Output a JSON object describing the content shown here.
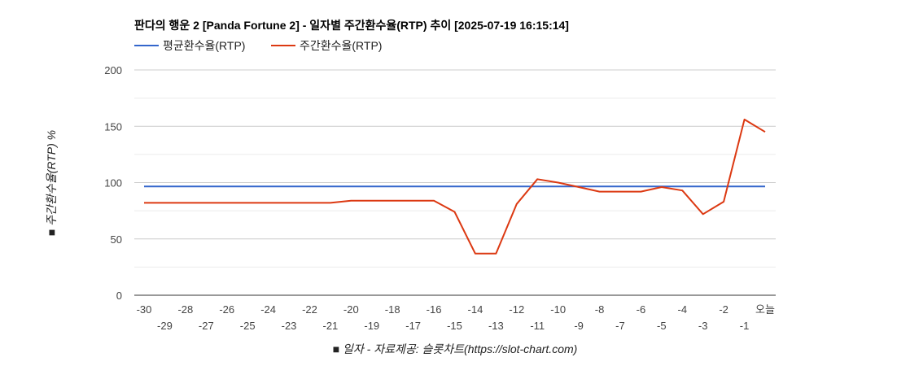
{
  "chart_data": {
    "type": "line",
    "title": "판다의 행운 2 [Panda Fortune 2] - 일자별 주간환수율(RTP) 추이 [2025-07-19 16:15:14]",
    "ylabel": "■ 주간환수율(RTP) %",
    "xlabel": "■ 일자 - 자료제공: 슬롯차트(https://slot-chart.com)",
    "ylim": [
      0,
      200
    ],
    "yticks": [
      "200",
      "150",
      "100",
      "50",
      "0"
    ],
    "x": [
      "-30",
      "-29",
      "-28",
      "-27",
      "-26",
      "-25",
      "-24",
      "-23",
      "-22",
      "-21",
      "-20",
      "-19",
      "-18",
      "-17",
      "-16",
      "-15",
      "-14",
      "-13",
      "-12",
      "-11",
      "-10",
      "-9",
      "-8",
      "-7",
      "-6",
      "-5",
      "-4",
      "-3",
      "-2",
      "-1",
      "오늘"
    ],
    "legend_position": "top-left",
    "grid": true,
    "series": [
      {
        "name": "평균환수율(RTP)",
        "color": "#3366cc",
        "values": [
          96.5,
          96.5,
          96.5,
          96.5,
          96.5,
          96.5,
          96.5,
          96.5,
          96.5,
          96.5,
          96.5,
          96.5,
          96.5,
          96.5,
          96.5,
          96.5,
          96.5,
          96.5,
          96.5,
          96.5,
          96.5,
          96.5,
          96.5,
          96.5,
          96.5,
          96.5,
          96.5,
          96.5,
          96.5,
          96.5,
          96.5
        ]
      },
      {
        "name": "주간환수율(RTP)",
        "color": "#dc3912",
        "values": [
          82,
          82,
          82,
          82,
          82,
          82,
          82,
          82,
          82,
          82,
          84,
          84,
          84,
          84,
          84,
          74,
          37,
          37,
          81,
          103,
          100,
          96,
          92,
          92,
          92,
          96,
          93,
          72,
          83,
          156,
          145
        ]
      }
    ]
  }
}
